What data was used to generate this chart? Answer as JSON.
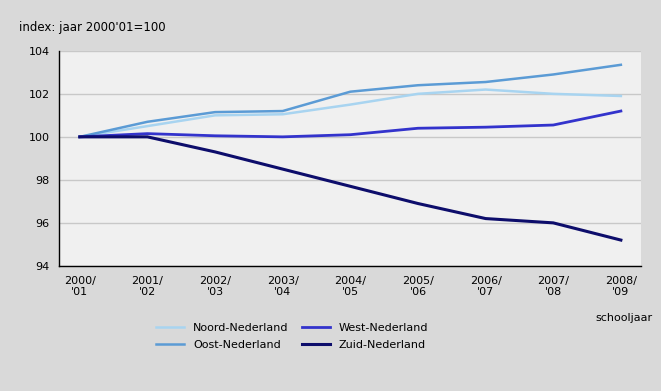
{
  "title": "index: jaar 2000'01=100",
  "xlabel": "schooljaar",
  "xlabels": [
    "2000/\n'01",
    "2001/\n'02",
    "2002/\n'03",
    "2003/\n'04",
    "2004/\n'05",
    "2005/\n'06",
    "2006/\n'07",
    "2007/\n'08",
    "2008/\n'09"
  ],
  "ylim": [
    94,
    104
  ],
  "yticks": [
    94,
    96,
    98,
    100,
    102,
    104
  ],
  "series": [
    {
      "name": "Noord-Nederland",
      "color": "#a8d4f0",
      "linewidth": 1.8,
      "values": [
        100.0,
        100.5,
        101.0,
        101.05,
        101.5,
        102.0,
        102.2,
        102.0,
        101.9
      ]
    },
    {
      "name": "Oost-Nederland",
      "color": "#5b9bd5",
      "linewidth": 1.8,
      "values": [
        100.0,
        100.7,
        101.15,
        101.2,
        102.1,
        102.4,
        102.55,
        102.9,
        103.35
      ]
    },
    {
      "name": "West-Nederland",
      "color": "#3333cc",
      "linewidth": 2.0,
      "values": [
        100.0,
        100.15,
        100.05,
        100.0,
        100.1,
        100.4,
        100.45,
        100.55,
        101.2
      ]
    },
    {
      "name": "Zuid-Nederland",
      "color": "#0d0d6b",
      "linewidth": 2.2,
      "values": [
        100.0,
        100.0,
        99.3,
        98.5,
        97.7,
        96.9,
        96.2,
        96.0,
        95.2
      ]
    }
  ],
  "fig_bg_color": "#d9d9d9",
  "plot_bg_color": "#f0f0f0",
  "grid_color": "#c8c8c8",
  "legend_order": [
    "Noord-Nederland",
    "Oost-Nederland",
    "West-Nederland",
    "Zuid-Nederland"
  ]
}
